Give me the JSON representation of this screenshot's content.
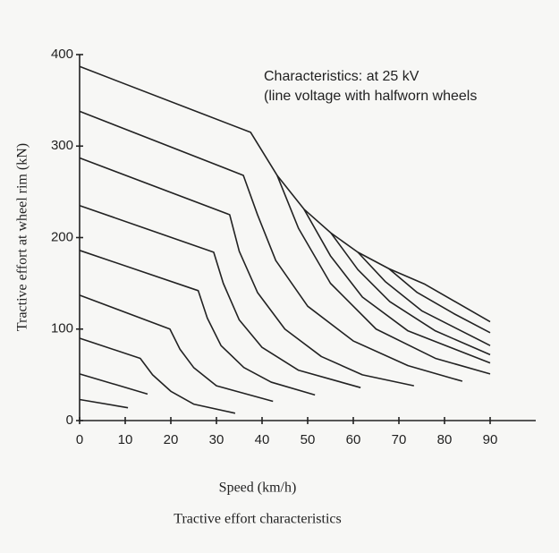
{
  "chart_data": {
    "type": "line",
    "title": "Tractive effort characteristics",
    "xlabel": "Speed (km/h)",
    "ylabel": "Tractive effort at wheel rim (kN)",
    "annotation": [
      "Characteristics: at 25 kV",
      "(line voltage with halfworn wheels"
    ],
    "color": "#222222",
    "xlim": [
      0,
      100
    ],
    "ylim": [
      0,
      400
    ],
    "xticks": [
      0,
      10,
      20,
      30,
      40,
      50,
      60,
      70,
      80,
      90
    ],
    "yticks": [
      0,
      100,
      200,
      300,
      400
    ],
    "series": [
      {
        "x": [
          0,
          37.5,
          43.3,
          49.2,
          55.1,
          61,
          67.8,
          75.7,
          90
        ],
        "values": [
          387,
          315,
          268,
          231,
          205,
          184,
          166,
          149,
          108
        ]
      },
      {
        "x": [
          43.3,
          48,
          55,
          65,
          78,
          90
        ],
        "values": [
          268,
          210,
          150,
          100,
          68,
          51
        ]
      },
      {
        "x": [
          49.2,
          55,
          62,
          72,
          90
        ],
        "values": [
          231,
          180,
          135,
          98,
          63
        ]
      },
      {
        "x": [
          55.1,
          61,
          68,
          78,
          90
        ],
        "values": [
          205,
          165,
          130,
          98,
          72
        ]
      },
      {
        "x": [
          61,
          67,
          75,
          90
        ],
        "values": [
          184,
          152,
          120,
          82
        ]
      },
      {
        "x": [
          67.8,
          74,
          82,
          90
        ],
        "values": [
          166,
          140,
          117,
          96
        ]
      },
      {
        "x": [
          0,
          35.9,
          39,
          43,
          50,
          60,
          72,
          83.9
        ],
        "values": [
          338,
          268,
          225,
          175,
          125,
          87,
          60,
          43
        ]
      },
      {
        "x": [
          0,
          32.9,
          35,
          39,
          45,
          53,
          62,
          73.3
        ],
        "values": [
          287,
          225,
          185,
          140,
          100,
          70,
          50,
          38
        ]
      },
      {
        "x": [
          0,
          29.4,
          31.5,
          35,
          40,
          48,
          61.6
        ],
        "values": [
          235,
          184,
          150,
          110,
          80,
          55,
          36
        ]
      },
      {
        "x": [
          0,
          26,
          28,
          31,
          36,
          42,
          51.6
        ],
        "values": [
          186,
          142,
          112,
          82,
          58,
          42,
          28
        ]
      },
      {
        "x": [
          0,
          19.8,
          22,
          25,
          30,
          42.4
        ],
        "values": [
          137,
          100,
          78,
          58,
          38,
          21
        ]
      },
      {
        "x": [
          0,
          13.3,
          16,
          20,
          25,
          34.1
        ],
        "values": [
          90,
          68,
          50,
          32,
          18,
          8
        ]
      },
      {
        "x": [
          0,
          14.9
        ],
        "values": [
          51,
          29
        ]
      },
      {
        "x": [
          0,
          10.6
        ],
        "values": [
          23,
          14
        ]
      }
    ]
  }
}
